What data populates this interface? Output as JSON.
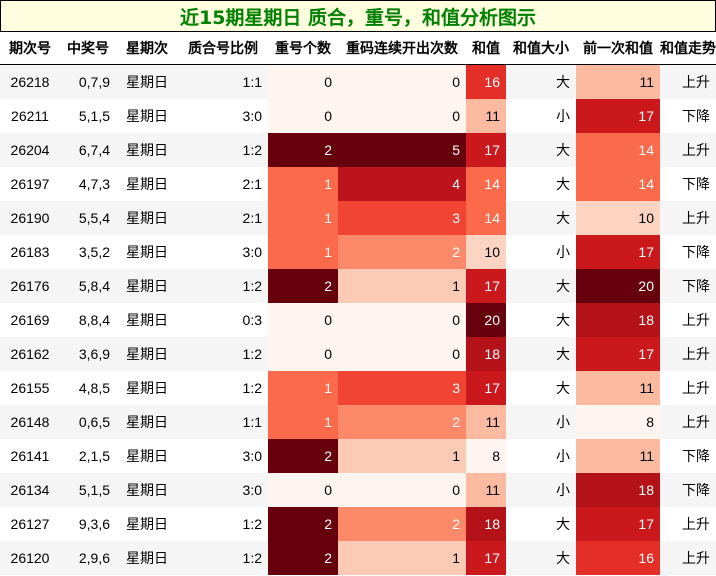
{
  "title": "近15期星期日 质合，重号，和值分析图示",
  "chart_data": {
    "type": "table",
    "columns": [
      "期次号",
      "中奖号",
      "星期次",
      "质合号比例",
      "重号个数",
      "重码连续开出次数",
      "和值",
      "和值大小",
      "前一次和值",
      "和值走势"
    ],
    "rows": [
      [
        "26218",
        "0,7,9",
        "星期日",
        "1:1",
        0,
        0,
        16,
        "大",
        11,
        "上升"
      ],
      [
        "26211",
        "5,1,5",
        "星期日",
        "3:0",
        0,
        0,
        11,
        "小",
        17,
        "下降"
      ],
      [
        "26204",
        "6,7,4",
        "星期日",
        "1:2",
        2,
        5,
        17,
        "大",
        14,
        "上升"
      ],
      [
        "26197",
        "4,7,3",
        "星期日",
        "2:1",
        1,
        4,
        14,
        "大",
        14,
        "下降"
      ],
      [
        "26190",
        "5,5,4",
        "星期日",
        "2:1",
        1,
        3,
        14,
        "大",
        10,
        "上升"
      ],
      [
        "26183",
        "3,5,2",
        "星期日",
        "3:0",
        1,
        2,
        10,
        "小",
        17,
        "下降"
      ],
      [
        "26176",
        "5,8,4",
        "星期日",
        "1:2",
        2,
        1,
        17,
        "大",
        20,
        "下降"
      ],
      [
        "26169",
        "8,8,4",
        "星期日",
        "0:3",
        0,
        0,
        20,
        "大",
        18,
        "上升"
      ],
      [
        "26162",
        "3,6,9",
        "星期日",
        "1:2",
        0,
        0,
        18,
        "大",
        17,
        "上升"
      ],
      [
        "26155",
        "4,8,5",
        "星期日",
        "1:2",
        1,
        3,
        17,
        "大",
        11,
        "上升"
      ],
      [
        "26148",
        "0,6,5",
        "星期日",
        "1:1",
        1,
        2,
        11,
        "小",
        8,
        "上升"
      ],
      [
        "26141",
        "2,1,5",
        "星期日",
        "3:0",
        2,
        1,
        8,
        "小",
        11,
        "下降"
      ],
      [
        "26134",
        "5,1,5",
        "星期日",
        "3:0",
        0,
        0,
        11,
        "小",
        18,
        "下降"
      ],
      [
        "26127",
        "9,3,6",
        "星期日",
        "1:2",
        2,
        2,
        18,
        "大",
        17,
        "上升"
      ],
      [
        "26120",
        "2,9,6",
        "星期日",
        "1:2",
        2,
        1,
        17,
        "大",
        16,
        "上升"
      ]
    ],
    "heat_columns": [
      4,
      5,
      6,
      8
    ],
    "heat_ranges": {
      "4": [
        0,
        2
      ],
      "5": [
        0,
        5
      ],
      "6": [
        8,
        20
      ],
      "8": [
        8,
        20
      ]
    },
    "colormap": "Reds"
  }
}
